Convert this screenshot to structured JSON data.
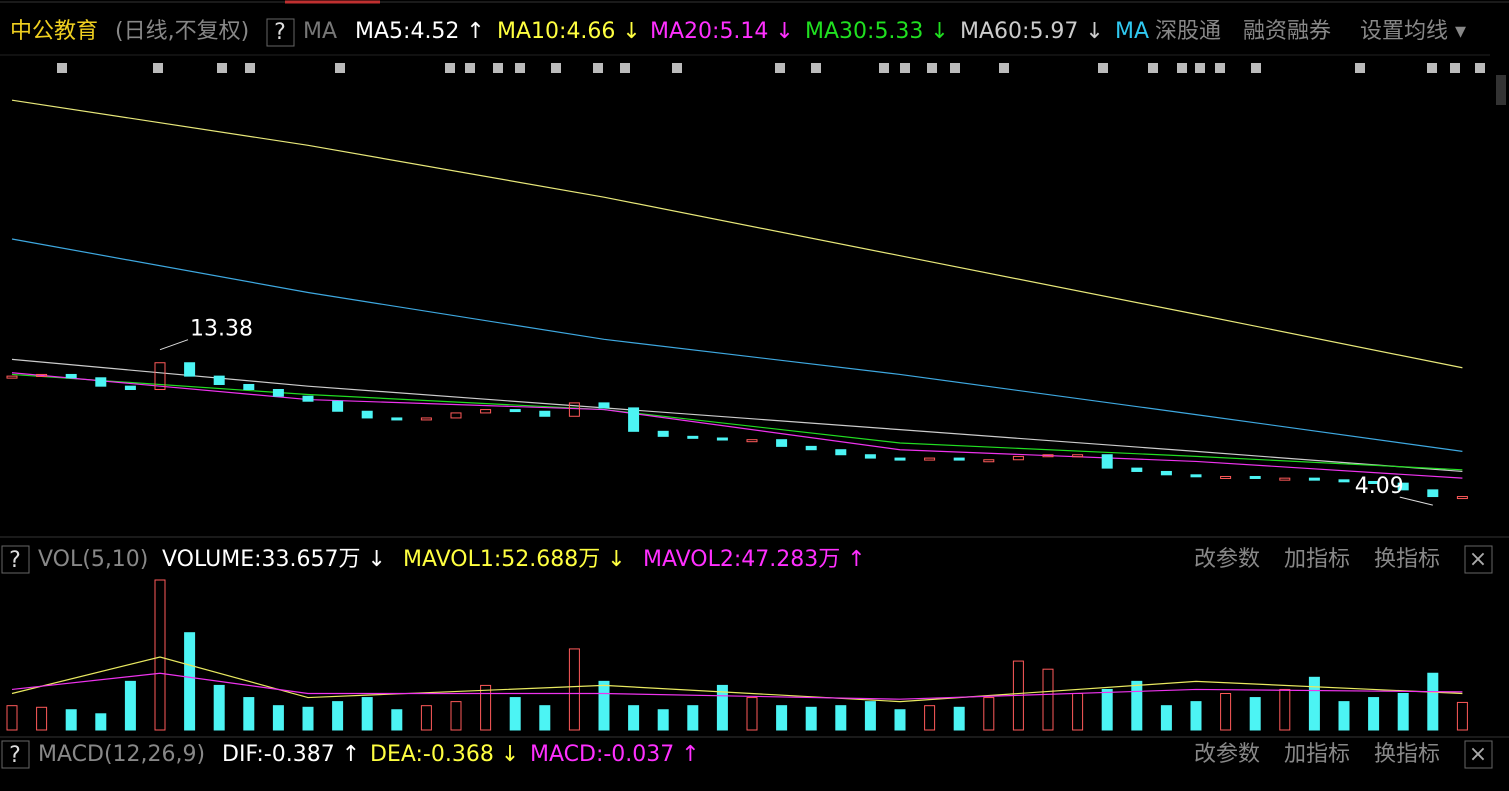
{
  "header": {
    "stock": "中公教育",
    "period": "(日线,不复权)",
    "help": "?",
    "ma": "MA",
    "ma5": "MA5:4.52 ↑",
    "ma10": "MA10:4.66 ↓",
    "ma20": "MA20:5.14 ↓",
    "ma30": "MA30:5.33 ↓",
    "ma60": "MA60:5.97 ↓",
    "ma_link": "MA",
    "sgt": "深股通",
    "margin": "融资融券",
    "settings": "设置均线 ▾"
  },
  "volume_panel": {
    "help": "?",
    "name": "VOL(5,10)",
    "volume": "VOLUME:33.657万 ↓",
    "mavol1": "MAVOL1:52.688万 ↓",
    "mavol2": "MAVOL2:47.283万 ↑",
    "buttons": [
      "改参数",
      "加指标",
      "换指标"
    ],
    "close": "×"
  },
  "macd_panel": {
    "help": "?",
    "name": "MACD(12,26,9)",
    "dif": "DIF:-0.387 ↑",
    "dea": "DEA:-0.368 ↓",
    "macd": "MACD:-0.037 ↑",
    "buttons": [
      "改参数",
      "加指标",
      "换指标"
    ],
    "close": "×"
  },
  "chart_data": [
    {
      "type": "candlestick",
      "ylim": [
        2.6,
        31
      ],
      "open": [
        11.7,
        11.8,
        11.9,
        11.7,
        11.2,
        11.0,
        12.6,
        11.8,
        11.3,
        11.0,
        10.6,
        10.3,
        9.7,
        9.3,
        9.2,
        9.3,
        9.6,
        9.8,
        9.7,
        9.4,
        10.2,
        9.9,
        8.5,
        8.2,
        8.1,
        8.0,
        8.0,
        7.6,
        7.4,
        7.1,
        6.9,
        6.8,
        6.9,
        6.8,
        6.8,
        7.0,
        7.1,
        7.1,
        6.3,
        6.1,
        5.9,
        5.8,
        5.8,
        5.7,
        5.7,
        5.6,
        5.5,
        5.4,
        5.0,
        4.6
      ],
      "close": [
        11.8,
        11.9,
        11.7,
        11.2,
        11.0,
        12.6,
        11.8,
        11.3,
        11.0,
        10.6,
        10.3,
        9.7,
        9.3,
        9.2,
        9.3,
        9.6,
        9.8,
        9.7,
        9.4,
        10.2,
        9.9,
        8.5,
        8.2,
        8.1,
        8.0,
        8.0,
        7.6,
        7.4,
        7.1,
        6.9,
        6.8,
        6.9,
        6.8,
        6.8,
        7.0,
        7.1,
        7.1,
        6.3,
        6.1,
        5.9,
        5.8,
        5.8,
        5.7,
        5.7,
        5.6,
        5.5,
        5.4,
        5.0,
        4.6,
        4.6
      ],
      "up_color": "#ff5a5a",
      "down_color": "#4cf4f4",
      "lines": [
        {
          "color": "#e8e87a",
          "x": [
            0,
            10,
            20,
            30,
            40,
            49
          ],
          "values": [
            28.3,
            25.6,
            22.5,
            19.0,
            15.5,
            12.3
          ]
        },
        {
          "color": "#3ea8e0",
          "x": [
            0,
            10,
            20,
            30,
            40,
            49
          ],
          "values": [
            20.0,
            16.8,
            14.0,
            11.9,
            9.5,
            7.3
          ]
        },
        {
          "color": "#cccccc",
          "x": [
            0,
            10,
            20,
            30,
            40,
            49
          ],
          "values": [
            12.8,
            11.2,
            9.9,
            8.6,
            7.3,
            6.1
          ]
        },
        {
          "color": "#22dd22",
          "x": [
            0,
            10,
            20,
            30,
            40,
            49
          ],
          "values": [
            11.9,
            10.7,
            9.8,
            7.8,
            7.0,
            6.2
          ]
        },
        {
          "color": "#ee33ee",
          "x": [
            0,
            10,
            20,
            30,
            40,
            49
          ],
          "values": [
            12.0,
            10.4,
            9.8,
            7.4,
            6.7,
            5.7
          ]
        }
      ],
      "annotations": [
        {
          "text": "13.38",
          "value": 13.38,
          "x": 5
        },
        {
          "text": "4.09",
          "value": 4.09,
          "x": 48
        }
      ]
    },
    {
      "type": "bar",
      "ylim": [
        0,
        185
      ],
      "values": [
        30,
        28,
        25,
        20,
        60,
        185,
        120,
        55,
        40,
        30,
        28,
        35,
        40,
        25,
        30,
        35,
        55,
        40,
        30,
        100,
        60,
        30,
        25,
        30,
        55,
        40,
        30,
        28,
        30,
        35,
        25,
        30,
        28,
        40,
        85,
        75,
        45,
        50,
        60,
        30,
        35,
        45,
        40,
        50,
        65,
        35,
        40,
        45,
        70,
        34
      ],
      "lines": [
        {
          "color": "#e8e860",
          "x": [
            0,
            5,
            10,
            20,
            30,
            40,
            49
          ],
          "values": [
            45,
            90,
            40,
            55,
            35,
            60,
            45
          ]
        },
        {
          "color": "#ee33ee",
          "x": [
            0,
            5,
            10,
            20,
            30,
            40,
            49
          ],
          "values": [
            50,
            70,
            45,
            45,
            38,
            50,
            47
          ]
        }
      ]
    }
  ]
}
